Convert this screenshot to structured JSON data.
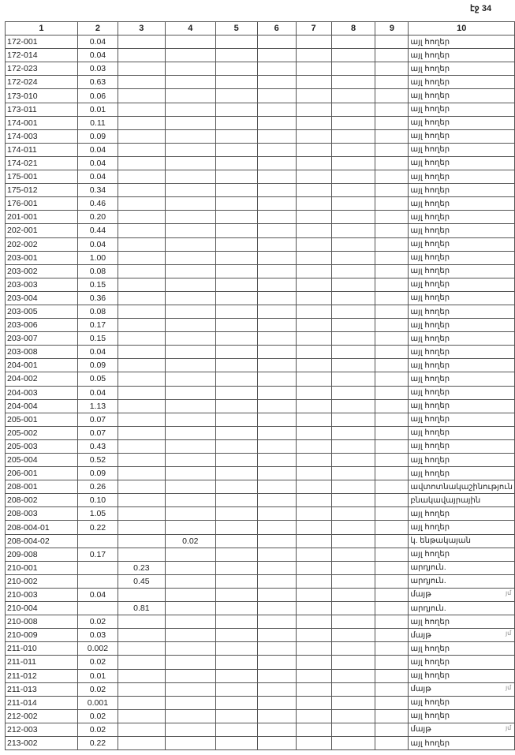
{
  "page_number": "էջ 34",
  "headers": [
    "1",
    "2",
    "3",
    "4",
    "5",
    "6",
    "7",
    "8",
    "9",
    "10"
  ],
  "rows": [
    [
      "172-001",
      "0.04",
      "",
      "",
      "",
      "",
      "",
      "",
      "",
      "այլ հողեր"
    ],
    [
      "172-014",
      "0.04",
      "",
      "",
      "",
      "",
      "",
      "",
      "",
      "այլ հողեր"
    ],
    [
      "172-023",
      "0.03",
      "",
      "",
      "",
      "",
      "",
      "",
      "",
      "այլ հողեր"
    ],
    [
      "172-024",
      "0.63",
      "",
      "",
      "",
      "",
      "",
      "",
      "",
      "այլ հողեր"
    ],
    [
      "173-010",
      "0.06",
      "",
      "",
      "",
      "",
      "",
      "",
      "",
      "այլ հողեր"
    ],
    [
      "173-011",
      "0.01",
      "",
      "",
      "",
      "",
      "",
      "",
      "",
      "այլ հողեր"
    ],
    [
      "174-001",
      "0.11",
      "",
      "",
      "",
      "",
      "",
      "",
      "",
      "այլ հողեր"
    ],
    [
      "174-003",
      "0.09",
      "",
      "",
      "",
      "",
      "",
      "",
      "",
      "այլ հողեր"
    ],
    [
      "174-011",
      "0.04",
      "",
      "",
      "",
      "",
      "",
      "",
      "",
      "այլ հողեր"
    ],
    [
      "174-021",
      "0.04",
      "",
      "",
      "",
      "",
      "",
      "",
      "",
      "այլ հողեր"
    ],
    [
      "175-001",
      "0.04",
      "",
      "",
      "",
      "",
      "",
      "",
      "",
      "այլ հողեր"
    ],
    [
      "175-012",
      "0.34",
      "",
      "",
      "",
      "",
      "",
      "",
      "",
      "այլ հողեր"
    ],
    [
      "176-001",
      "0.46",
      "",
      "",
      "",
      "",
      "",
      "",
      "",
      "այլ հողեր"
    ],
    [
      "201-001",
      "0.20",
      "",
      "",
      "",
      "",
      "",
      "",
      "",
      "այլ հողեր"
    ],
    [
      "202-001",
      "0.44",
      "",
      "",
      "",
      "",
      "",
      "",
      "",
      "այլ հողեր"
    ],
    [
      "202-002",
      "0.04",
      "",
      "",
      "",
      "",
      "",
      "",
      "",
      "այլ հողեր"
    ],
    [
      "203-001",
      "1.00",
      "",
      "",
      "",
      "",
      "",
      "",
      "",
      "այլ հողեր"
    ],
    [
      "203-002",
      "0.08",
      "",
      "",
      "",
      "",
      "",
      "",
      "",
      "այլ հողեր"
    ],
    [
      "203-003",
      "0.15",
      "",
      "",
      "",
      "",
      "",
      "",
      "",
      "այլ հողեր"
    ],
    [
      "203-004",
      "0.36",
      "",
      "",
      "",
      "",
      "",
      "",
      "",
      "այլ հողեր"
    ],
    [
      "203-005",
      "0.08",
      "",
      "",
      "",
      "",
      "",
      "",
      "",
      "այլ հողեր"
    ],
    [
      "203-006",
      "0.17",
      "",
      "",
      "",
      "",
      "",
      "",
      "",
      "այլ հողեր"
    ],
    [
      "203-007",
      "0.15",
      "",
      "",
      "",
      "",
      "",
      "",
      "",
      "այլ հողեր"
    ],
    [
      "203-008",
      "0.04",
      "",
      "",
      "",
      "",
      "",
      "",
      "",
      "այլ հողեր"
    ],
    [
      "204-001",
      "0.09",
      "",
      "",
      "",
      "",
      "",
      "",
      "",
      "այլ հողեր"
    ],
    [
      "204-002",
      "0.05",
      "",
      "",
      "",
      "",
      "",
      "",
      "",
      "այլ հողեր"
    ],
    [
      "204-003",
      "0.04",
      "",
      "",
      "",
      "",
      "",
      "",
      "",
      "այլ հողեր"
    ],
    [
      "204-004",
      "1.13",
      "",
      "",
      "",
      "",
      "",
      "",
      "",
      "այլ հողեր"
    ],
    [
      "205-001",
      "0.07",
      "",
      "",
      "",
      "",
      "",
      "",
      "",
      "այլ հողեր"
    ],
    [
      "205-002",
      "0.07",
      "",
      "",
      "",
      "",
      "",
      "",
      "",
      "այլ հողեր"
    ],
    [
      "205-003",
      "0.43",
      "",
      "",
      "",
      "",
      "",
      "",
      "",
      "այլ հողեր"
    ],
    [
      "205-004",
      "0.52",
      "",
      "",
      "",
      "",
      "",
      "",
      "",
      "այլ հողեր"
    ],
    [
      "206-001",
      "0.09",
      "",
      "",
      "",
      "",
      "",
      "",
      "",
      "այլ հողեր"
    ],
    [
      "208-001",
      "0.26",
      "",
      "",
      "",
      "",
      "",
      "",
      "",
      "ավտոտնակաշինություն"
    ],
    [
      "208-002",
      "0.10",
      "",
      "",
      "",
      "",
      "",
      "",
      "",
      "բնակավայրային"
    ],
    [
      "208-003",
      "1.05",
      "",
      "",
      "",
      "",
      "",
      "",
      "",
      "այլ հողեր"
    ],
    [
      "208-004-01",
      "0.22",
      "",
      "",
      "",
      "",
      "",
      "",
      "",
      "այլ հողեր"
    ],
    [
      "208-004-02",
      "",
      "",
      "0.02",
      "",
      "",
      "",
      "",
      "",
      "կ. ենթակայան"
    ],
    [
      "209-008",
      "0.17",
      "",
      "",
      "",
      "",
      "",
      "",
      "",
      "այլ հողեր"
    ],
    [
      "210-001",
      "",
      "0.23",
      "",
      "",
      "",
      "",
      "",
      "",
      "արդյուն."
    ],
    [
      "210-002",
      "",
      "0.45",
      "",
      "",
      "",
      "",
      "",
      "",
      "արդյուն."
    ],
    [
      "210-003",
      "0.04",
      "",
      "",
      "",
      "",
      "",
      "",
      "",
      "մայթ"
    ],
    [
      "210-004",
      "",
      "0.81",
      "",
      "",
      "",
      "",
      "",
      "",
      "արդյուն."
    ],
    [
      "210-008",
      "0.02",
      "",
      "",
      "",
      "",
      "",
      "",
      "",
      "այլ հողեր"
    ],
    [
      "210-009",
      "0.03",
      "",
      "",
      "",
      "",
      "",
      "",
      "",
      "մայթ"
    ],
    [
      "211-010",
      "0.002",
      "",
      "",
      "",
      "",
      "",
      "",
      "",
      "այլ հողեր"
    ],
    [
      "211-011",
      "0.02",
      "",
      "",
      "",
      "",
      "",
      "",
      "",
      "այլ հողեր"
    ],
    [
      "211-012",
      "0.01",
      "",
      "",
      "",
      "",
      "",
      "",
      "",
      "այլ հողեր"
    ],
    [
      "211-013",
      "0.02",
      "",
      "",
      "",
      "",
      "",
      "",
      "",
      "մայթ"
    ],
    [
      "211-014",
      "0.001",
      "",
      "",
      "",
      "",
      "",
      "",
      "",
      "այլ հողեր"
    ],
    [
      "212-002",
      "0.02",
      "",
      "",
      "",
      "",
      "",
      "",
      "",
      "այլ հողեր"
    ],
    [
      "212-003",
      "0.02",
      "",
      "",
      "",
      "",
      "",
      "",
      "",
      "մայթ"
    ],
    [
      "213-002",
      "0.22",
      "",
      "",
      "",
      "",
      "",
      "",
      "",
      "այլ հողեր"
    ]
  ],
  "margin_mark": "յմ"
}
